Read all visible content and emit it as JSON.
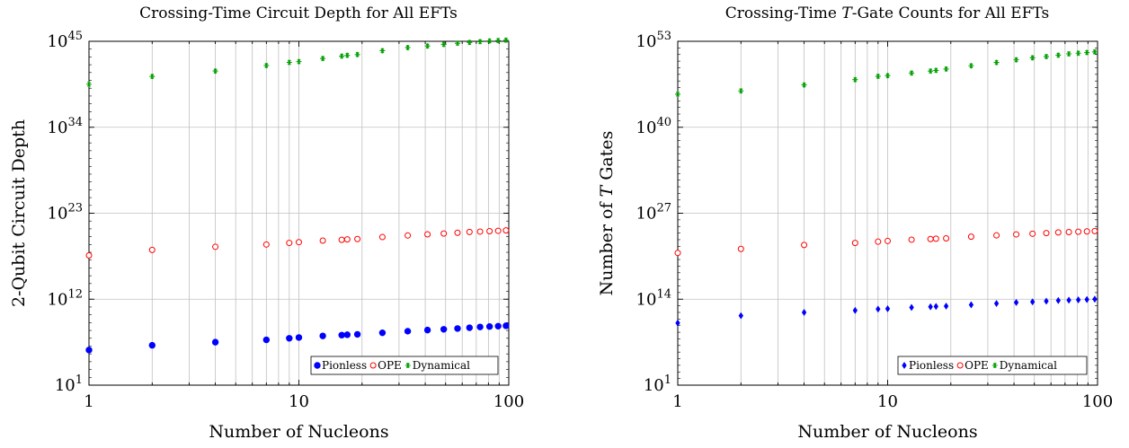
{
  "chart_data": [
    {
      "type": "scatter",
      "title": "Crossing-Time Circuit Depth for All EFTs",
      "xlabel": "Number of Nucleons",
      "ylabel": "2-Qubit Circuit Depth",
      "xscale": "log",
      "yscale": "log",
      "xlim": [
        1,
        100
      ],
      "ylim_exponent": [
        1,
        45
      ],
      "grid": "on",
      "legend_position": "bottom-right",
      "x_tick_labels": [
        "1",
        "10",
        "100"
      ],
      "y_tick_labels": [
        {
          "base": "10",
          "exp": "1"
        },
        {
          "base": "10",
          "exp": "12"
        },
        {
          "base": "10",
          "exp": "23"
        },
        {
          "base": "10",
          "exp": "34"
        },
        {
          "base": "10",
          "exp": "45"
        }
      ],
      "x": [
        1,
        2,
        4,
        7,
        9,
        10,
        13,
        16,
        17,
        19,
        25,
        33,
        41,
        49,
        57,
        65,
        73,
        81,
        89,
        97
      ],
      "series": [
        {
          "name": "Pionless",
          "marker": "circle",
          "color": "#0000ff",
          "log10_values": [
            5.5,
            6.1,
            6.5,
            6.8,
            7.0,
            7.1,
            7.3,
            7.4,
            7.45,
            7.5,
            7.7,
            7.9,
            8.05,
            8.15,
            8.25,
            8.35,
            8.45,
            8.5,
            8.55,
            8.6
          ]
        },
        {
          "name": "OPE",
          "marker": "open-circle",
          "color": "#ff0000",
          "log10_values": [
            17.6,
            18.3,
            18.7,
            19.0,
            19.2,
            19.3,
            19.5,
            19.6,
            19.65,
            19.7,
            19.95,
            20.15,
            20.3,
            20.4,
            20.5,
            20.6,
            20.65,
            20.7,
            20.75,
            20.8
          ]
        },
        {
          "name": "Dynamical",
          "marker": "star",
          "color": "#00a000",
          "log10_values": [
            39.5,
            40.5,
            41.2,
            41.9,
            42.3,
            42.4,
            42.8,
            43.1,
            43.2,
            43.3,
            43.8,
            44.2,
            44.4,
            44.6,
            44.75,
            44.85,
            44.95,
            45.05,
            45.1,
            45.15
          ]
        }
      ]
    },
    {
      "type": "scatter",
      "title": "Crossing-Time T-Gate Counts for All EFTs",
      "title_parts": [
        "Crossing-Time ",
        "T",
        "-Gate Counts for All EFTs"
      ],
      "xlabel": "Number of Nucleons",
      "ylabel": "Number of T Gates",
      "ylabel_parts": [
        "Number of ",
        "T",
        " Gates"
      ],
      "xscale": "log",
      "yscale": "log",
      "xlim": [
        1,
        100
      ],
      "ylim_exponent": [
        1,
        53
      ],
      "grid": "on",
      "legend_position": "bottom-right",
      "x_tick_labels": [
        "1",
        "10",
        "100"
      ],
      "y_tick_labels": [
        {
          "base": "10",
          "exp": "1"
        },
        {
          "base": "10",
          "exp": "14"
        },
        {
          "base": "10",
          "exp": "27"
        },
        {
          "base": "10",
          "exp": "40"
        },
        {
          "base": "10",
          "exp": "53"
        }
      ],
      "x": [
        1,
        2,
        4,
        7,
        9,
        10,
        13,
        16,
        17,
        19,
        25,
        33,
        41,
        49,
        57,
        65,
        73,
        81,
        89,
        97
      ],
      "series": [
        {
          "name": "Pionless",
          "marker": "diamond",
          "color": "#0000ff",
          "log10_values": [
            10.4,
            11.5,
            12.0,
            12.3,
            12.5,
            12.55,
            12.75,
            12.85,
            12.9,
            12.95,
            13.15,
            13.35,
            13.5,
            13.6,
            13.7,
            13.8,
            13.85,
            13.9,
            13.95,
            14.0
          ]
        },
        {
          "name": "OPE",
          "marker": "open-circle",
          "color": "#ff0000",
          "log10_values": [
            21.0,
            21.6,
            22.2,
            22.5,
            22.7,
            22.8,
            23.0,
            23.1,
            23.15,
            23.2,
            23.45,
            23.65,
            23.8,
            23.9,
            24.0,
            24.1,
            24.15,
            24.2,
            24.25,
            24.3
          ]
        },
        {
          "name": "Dynamical",
          "marker": "star",
          "color": "#00a000",
          "log10_values": [
            45.0,
            45.5,
            46.4,
            47.2,
            47.7,
            47.8,
            48.2,
            48.5,
            48.6,
            48.8,
            49.3,
            49.8,
            50.2,
            50.5,
            50.7,
            50.9,
            51.1,
            51.2,
            51.3,
            51.4
          ]
        }
      ]
    }
  ]
}
